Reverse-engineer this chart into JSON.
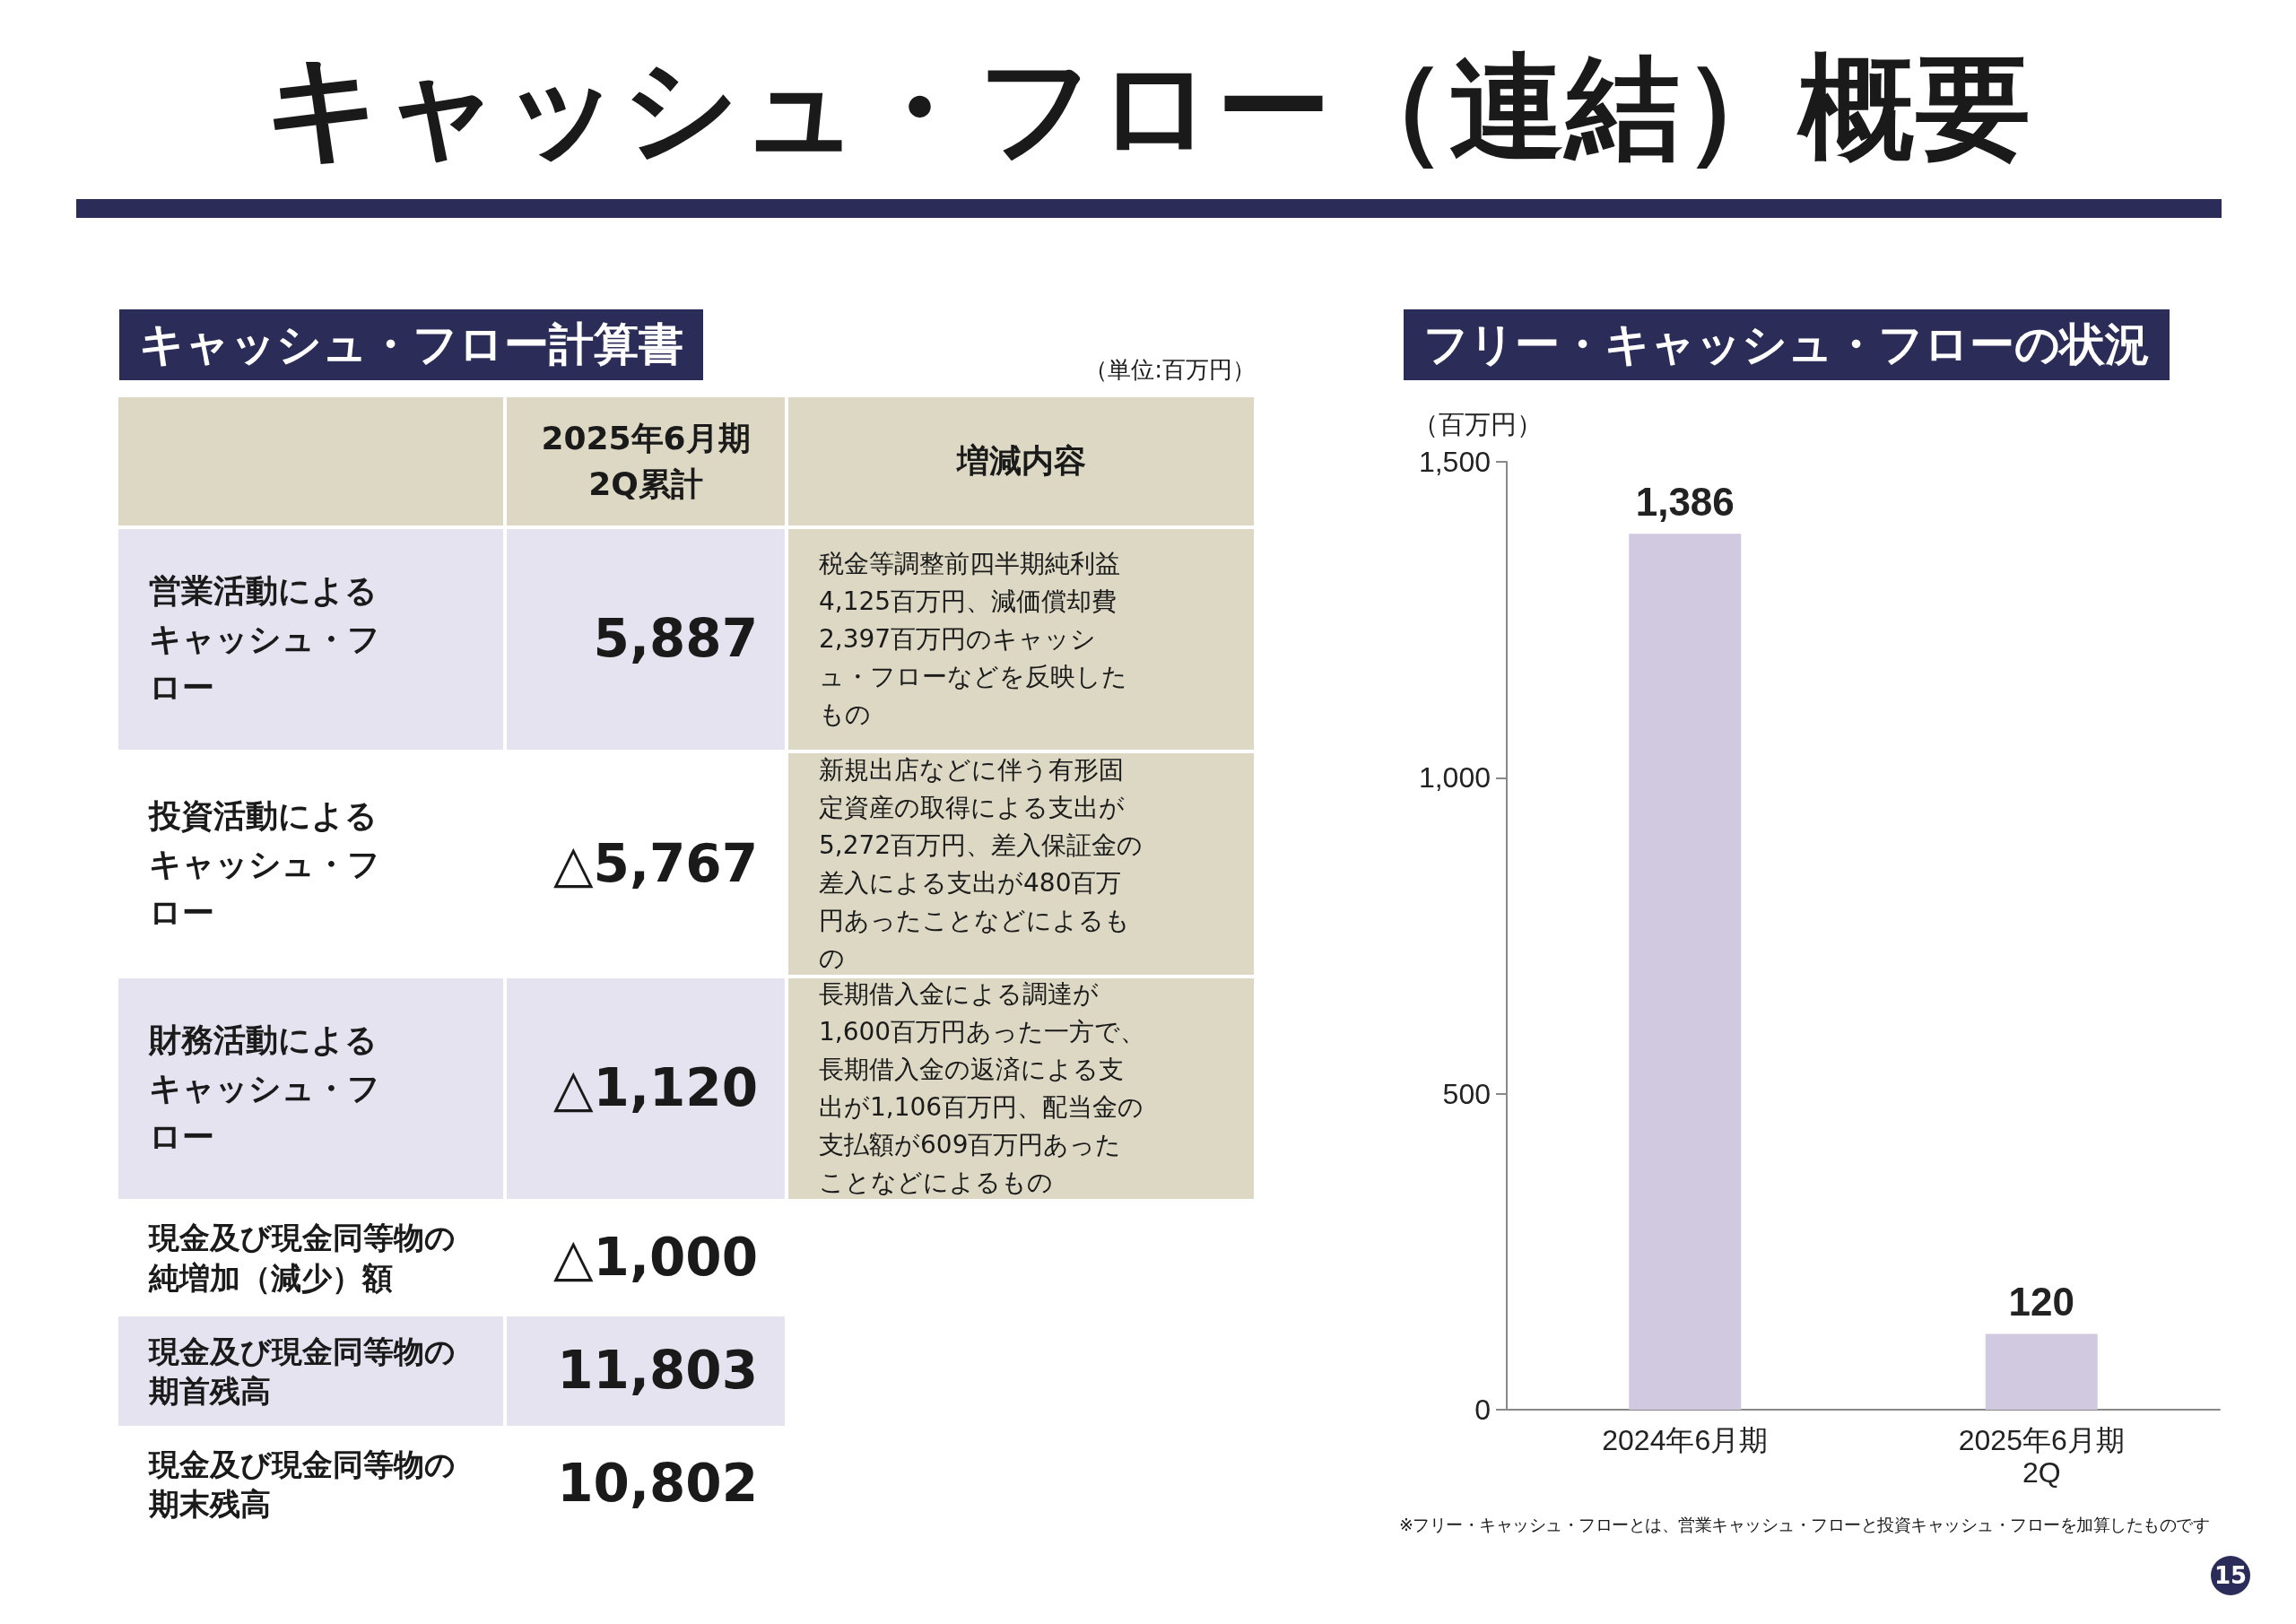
{
  "chart_data": [
    {
      "type": "other",
      "title": "キャッシュ・フロー（連結）概要",
      "subtitle": "キャッシュ・フロー計算書",
      "categories": [
        "営業活動によるキャッシュ・フロー",
        "投資活動によるキャッシュ・フロー",
        "財務活動によるキャッシュ・フロー",
        "現金及び現金同等物の純増加（減少）額",
        "現金及び現金同等物の期首残高",
        "現金及び現金同等物の期末残高"
      ],
      "value_labels": [
        "5,887",
        "△5,767",
        "△1,120",
        "△1,000",
        "11,803",
        "10,802"
      ],
      "annotations": [
        "（単位:百万円）",
        "2025年6月期\n2Q累計",
        "増減内容",
        "税金等調整前四半期純利益4,125百万円、減価償却費2,397百万円のキャッシュ・フローなどを反映したもの",
        "新規出店などに伴う有形固定資産の取得による支出が5,272百万円、差入保証金の差入による支出が480百万円あったことなどによるもの",
        "長期借入金による調達が1,600百万円あった一方で、長期借入金の返済による支出が1,106百万円、配当金の支払額が609百万円あったことなどによるもの"
      ]
    },
    {
      "type": "bar",
      "title": "フリー・キャッシュ・フローの状況",
      "ylabel": "（百万円）",
      "categories": [
        "2024年6月期",
        "2025年6月期\n2Q"
      ],
      "values": [
        1386,
        120
      ],
      "value_labels": [
        "1,386",
        "120"
      ],
      "color": "#d0c9e0",
      "ylim": [
        0,
        1500
      ],
      "yticks": [
        0,
        500,
        {
          "value": 1000,
          "label": "1,000"
        },
        {
          "value": 1500,
          "label": "1,500"
        }
      ],
      "annotations": [
        "※フリー・キャッシュ・フローとは、営業キャッシュ・フローと投資キャッシュ・フローを加算したものです",
        "15"
      ]
    }
  ]
}
